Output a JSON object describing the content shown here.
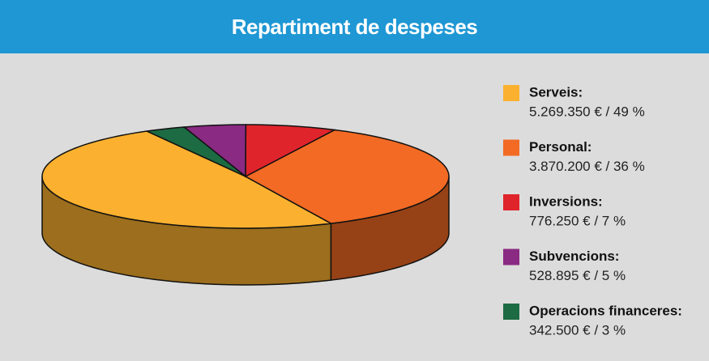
{
  "chart_data": {
    "type": "pie3d",
    "title": "Repartiment de despeses",
    "categories": [
      "Serveis:",
      "Personal:",
      "Inversions:",
      "Subvencions:",
      "Operacions financeres:"
    ],
    "values": [
      5269350,
      3870200,
      776250,
      528895,
      342500
    ],
    "value_labels": [
      "5.269.350 € / 49 %",
      "3.870.200 € / 36 %",
      "776.250 € / 7 %",
      "528.895 € / 5 %",
      "342.500 € / 3 %"
    ],
    "colors": [
      "#fbb12f",
      "#f26a24",
      "#e0242c",
      "#8a2a82",
      "#1d6b43"
    ]
  }
}
